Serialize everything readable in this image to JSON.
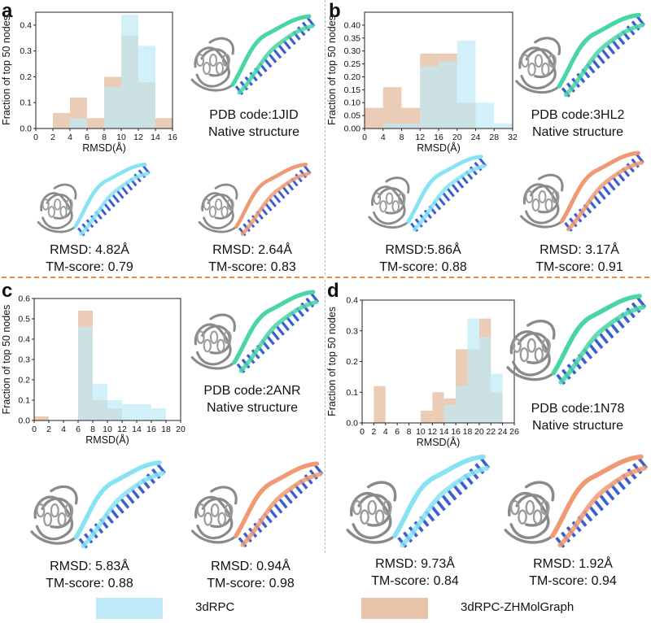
{
  "colors": {
    "rpc": "#bfe9f8",
    "zh": "#e8c3a9",
    "overlap": "#b9cbd6",
    "native_rna": "#49d5a6",
    "rpc_rna": "#86e3f3",
    "zh_rna": "#ef9a73",
    "bases": "#3a5fd0",
    "protein": "#8a8a8a"
  },
  "chart_data": [
    {
      "panel": "a",
      "type": "bar",
      "ylabel": "Fraction of top 50 nodes",
      "xlabel": "RMSD(Å)",
      "xlim": [
        0,
        16
      ],
      "ylim": [
        0,
        0.45
      ],
      "xticks": [
        "0",
        "2",
        "4",
        "6",
        "8",
        "10",
        "12",
        "14",
        "16"
      ],
      "yticks": [
        "0.0",
        "0.1",
        "0.2",
        "0.3",
        "0.4"
      ],
      "bin_edges": [
        2,
        4,
        6,
        8,
        10,
        12,
        14,
        16
      ],
      "series": [
        {
          "name": "3dRPC",
          "values": [
            0,
            0.04,
            0,
            0.16,
            0.44,
            0.32,
            0
          ]
        },
        {
          "name": "3dRPC-ZHMolGraph",
          "values": [
            0.06,
            0.12,
            0.04,
            0.2,
            0.36,
            0.18,
            0.04
          ]
        }
      ]
    },
    {
      "panel": "b",
      "type": "bar",
      "ylabel": "Fraction of top 50 nodes",
      "xlabel": "RMSD(Å)",
      "xlim": [
        0,
        32
      ],
      "ylim": [
        0,
        0.45
      ],
      "xticks": [
        "0",
        "4",
        "8",
        "12",
        "16",
        "20",
        "24",
        "28",
        "32"
      ],
      "yticks": [
        "0.00",
        "0.05",
        "0.10",
        "0.15",
        "0.20",
        "0.25",
        "0.30",
        "0.35",
        "0.40"
      ],
      "bin_edges": [
        0,
        4,
        8,
        12,
        16,
        20,
        24,
        28,
        32
      ],
      "series": [
        {
          "name": "3dRPC",
          "values": [
            0,
            0.02,
            0.02,
            0.24,
            0.26,
            0.34,
            0.1,
            0.02
          ]
        },
        {
          "name": "3dRPC-ZHMolGraph",
          "values": [
            0.08,
            0.16,
            0.08,
            0.29,
            0.29,
            0.1,
            0,
            0
          ]
        }
      ]
    },
    {
      "panel": "c",
      "type": "bar",
      "ylabel": "Fraction of top 50 nodes",
      "xlabel": "RMSD(Å)",
      "xlim": [
        0,
        20
      ],
      "ylim": [
        0,
        0.6
      ],
      "xticks": [
        "0",
        "2",
        "4",
        "6",
        "8",
        "10",
        "12",
        "14",
        "16",
        "18",
        "20"
      ],
      "yticks": [
        "0.0",
        "0.1",
        "0.2",
        "0.3",
        "0.4",
        "0.5",
        "0.6"
      ],
      "bin_edges": [
        0,
        2,
        4,
        6,
        8,
        10,
        12,
        14,
        16,
        18
      ],
      "series": [
        {
          "name": "3dRPC",
          "values": [
            0,
            0,
            0,
            0.46,
            0.18,
            0.1,
            0.08,
            0.08,
            0.06
          ]
        },
        {
          "name": "3dRPC-ZHMolGraph",
          "values": [
            0.02,
            0,
            0,
            0.54,
            0.1,
            0.06,
            0,
            0,
            0
          ]
        }
      ]
    },
    {
      "panel": "d",
      "type": "bar",
      "ylabel": "Fraction of top 50 nodes",
      "xlabel": "RMSD(Å)",
      "xlim": [
        0,
        26
      ],
      "ylim": [
        0,
        0.4
      ],
      "xticks": [
        "0",
        "2",
        "4",
        "6",
        "8",
        "10",
        "12",
        "14",
        "16",
        "18",
        "20",
        "22",
        "24",
        "26"
      ],
      "yticks": [
        "0.0",
        "0.1",
        "0.2",
        "0.3",
        "0.4"
      ],
      "bin_edges": [
        0,
        2,
        4,
        6,
        8,
        10,
        12,
        14,
        16,
        18,
        20,
        22,
        24
      ],
      "series": [
        {
          "name": "3dRPC",
          "values": [
            0,
            0,
            0,
            0,
            0,
            0,
            0,
            0.06,
            0.12,
            0.34,
            0.28,
            0.16
          ]
        },
        {
          "name": "3dRPC-ZHMolGraph",
          "values": [
            0,
            0.12,
            0,
            0,
            0,
            0.04,
            0.1,
            0.08,
            0.24,
            0.24,
            0.34,
            0.1
          ]
        }
      ]
    }
  ],
  "panels": {
    "a": {
      "letter": "a",
      "native": [
        "PDB code:1JID",
        "Native structure"
      ],
      "rpc": [
        "RMSD: 4.82Å",
        "TM-score: 0.79"
      ],
      "zh": [
        "RMSD: 2.64Å",
        "TM-score: 0.83"
      ]
    },
    "b": {
      "letter": "b",
      "native": [
        "PDB code:3HL2",
        "Native structure"
      ],
      "rpc": [
        "RMSD:5.86Å",
        "TM-score: 0.88"
      ],
      "zh": [
        "RMSD: 3.17Å",
        "TM-score: 0.91"
      ]
    },
    "c": {
      "letter": "c",
      "native": [
        "PDB code:2ANR",
        "Native structure"
      ],
      "rpc": [
        "RMSD: 5.83Å",
        "TM-score: 0.88"
      ],
      "zh": [
        "RMSD: 0.94Å",
        "TM-score: 0.98"
      ]
    },
    "d": {
      "letter": "d",
      "native": [
        "PDB code:1N78",
        "Native structure"
      ],
      "rpc": [
        "RMSD: 9.73Å",
        "TM-score: 0.84"
      ],
      "zh": [
        "RMSD: 1.92Å",
        "TM-score: 0.94"
      ]
    }
  },
  "legend": {
    "rpc_label": "3dRPC",
    "zh_label": "3dRPC-ZHMolGraph"
  }
}
